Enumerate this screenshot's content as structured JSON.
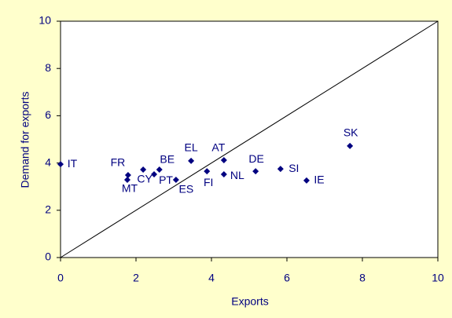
{
  "chart_data": {
    "type": "scatter",
    "x_label": "Exports",
    "y_label": "Demand for exports",
    "points": [
      "IT",
      "FR",
      "MT",
      "CY",
      "PT",
      "BE",
      "ES",
      "EL",
      "FI",
      "AT",
      "NL",
      "DE",
      "SI",
      "IE",
      "SK"
    ],
    "x": [
      0,
      1.79,
      1.77,
      2.19,
      2.48,
      2.62,
      3.06,
      3.46,
      3.88,
      4.33,
      4.33,
      5.17,
      5.83,
      6.52,
      7.67
    ],
    "y": [
      3.95,
      3.49,
      3.29,
      3.72,
      3.52,
      3.72,
      3.29,
      4.09,
      3.65,
      4.12,
      3.52,
      3.65,
      3.75,
      3.26,
      4.72
    ],
    "color": "#000080",
    "xlim": [
      0,
      10
    ],
    "ylim": [
      0,
      10
    ],
    "xticks": [
      0,
      2,
      4,
      6,
      8,
      10
    ],
    "yticks": [
      0,
      2,
      4,
      6,
      8,
      10
    ],
    "diagonal": true
  }
}
